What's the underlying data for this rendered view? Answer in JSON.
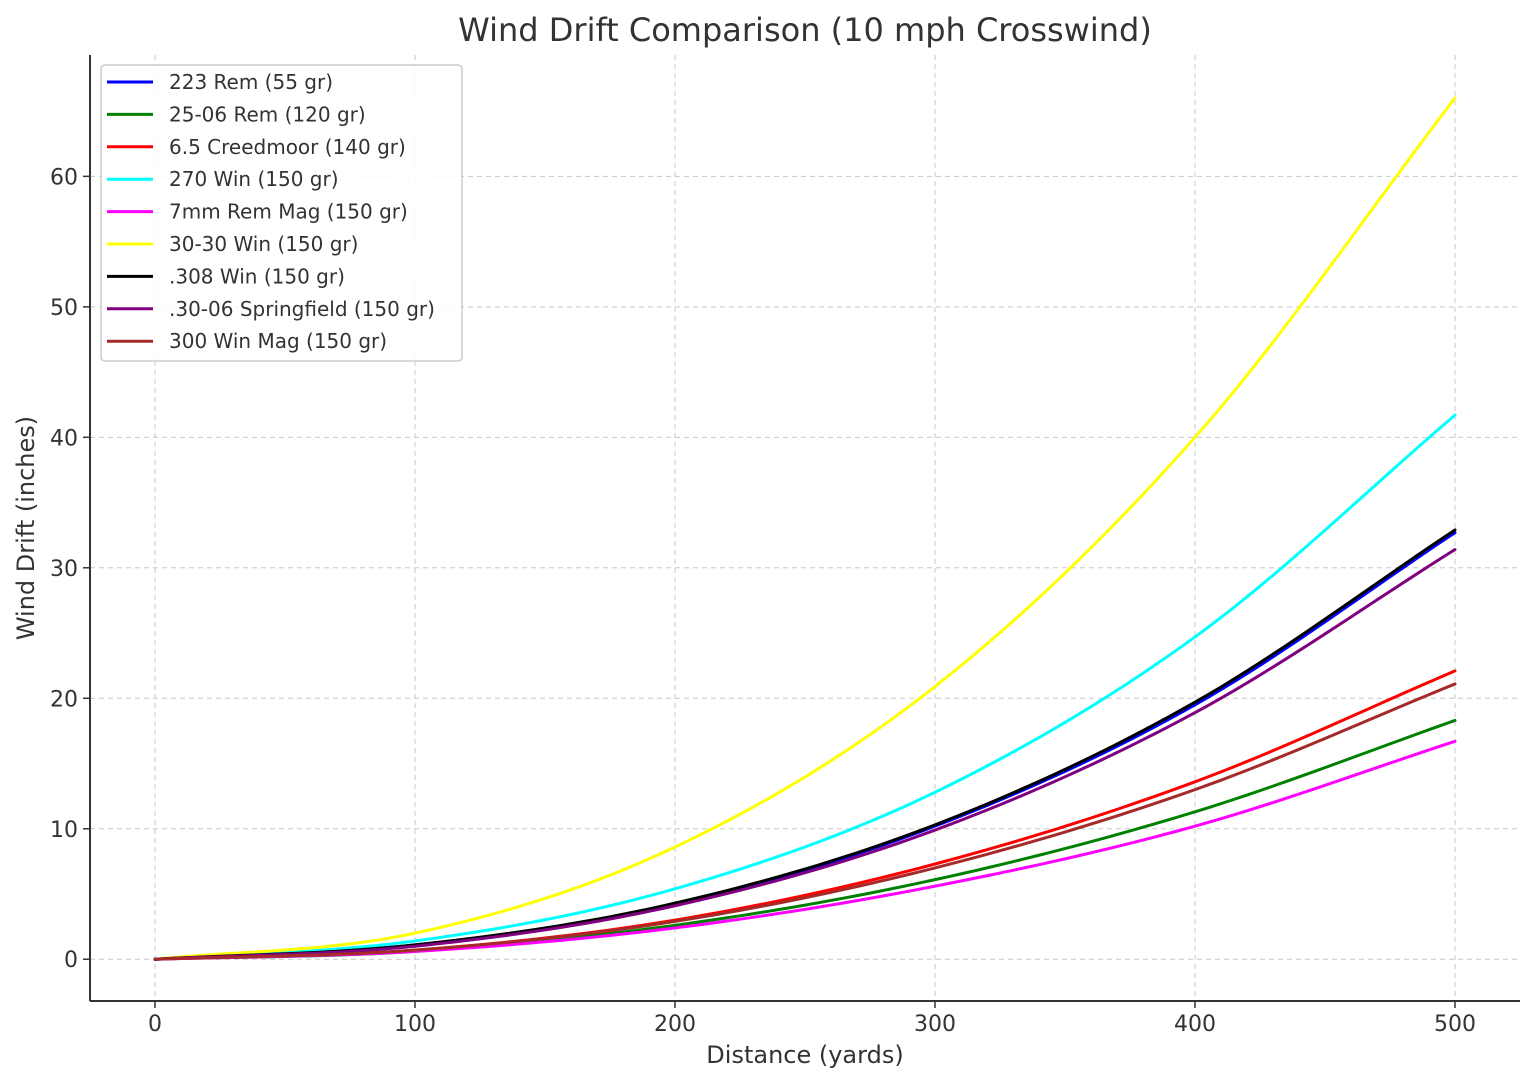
{
  "chart_data": {
    "type": "line",
    "title": "Wind Drift Comparison (10 mph Crosswind)",
    "xlabel": "Distance (yards)",
    "ylabel": "Wind Drift (inches)",
    "xlim": [
      -25,
      525
    ],
    "ylim": [
      -3.2,
      69.3
    ],
    "xticks": [
      0,
      100,
      200,
      300,
      400,
      500
    ],
    "yticks": [
      0,
      10,
      20,
      30,
      40,
      50,
      60
    ],
    "grid": true,
    "legend_position": "top-left",
    "x": [
      0,
      100,
      200,
      300,
      400,
      500
    ],
    "series": [
      {
        "name": "223 Rem (55 gr)",
        "color": "#0000ff",
        "values": [
          0,
          1.1,
          4.2,
          10.2,
          19.5,
          32.7
        ]
      },
      {
        "name": "25-06 Rem (120 gr)",
        "color": "#008000",
        "values": [
          0,
          0.6,
          2.6,
          6.1,
          11.3,
          18.3
        ]
      },
      {
        "name": "6.5 Creedmoor (140 gr)",
        "color": "#ff0000",
        "values": [
          0,
          0.7,
          3.0,
          7.3,
          13.6,
          22.1
        ]
      },
      {
        "name": "270 Win (150 gr)",
        "color": "#00ffff",
        "values": [
          0,
          1.4,
          5.4,
          12.8,
          24.7,
          41.7
        ]
      },
      {
        "name": "7mm Rem Mag (150 gr)",
        "color": "#ff00ff",
        "values": [
          0,
          0.6,
          2.4,
          5.6,
          10.2,
          16.7
        ]
      },
      {
        "name": "30-30 Win (150 gr)",
        "color": "#ffff00",
        "values": [
          0,
          2.0,
          8.6,
          20.9,
          40.0,
          66.0
        ]
      },
      {
        "name": ".308 Win (150 gr)",
        "color": "#000000",
        "values": [
          0,
          1.1,
          4.3,
          10.3,
          19.7,
          32.9
        ]
      },
      {
        "name": ".30-06 Springfield (150 gr)",
        "color": "#800080",
        "values": [
          0,
          1.0,
          4.1,
          9.9,
          18.9,
          31.4
        ]
      },
      {
        "name": "300 Win Mag (150 gr)",
        "color": "#a52a2a",
        "values": [
          0,
          0.7,
          2.9,
          7.0,
          13.0,
          21.1
        ]
      }
    ]
  }
}
